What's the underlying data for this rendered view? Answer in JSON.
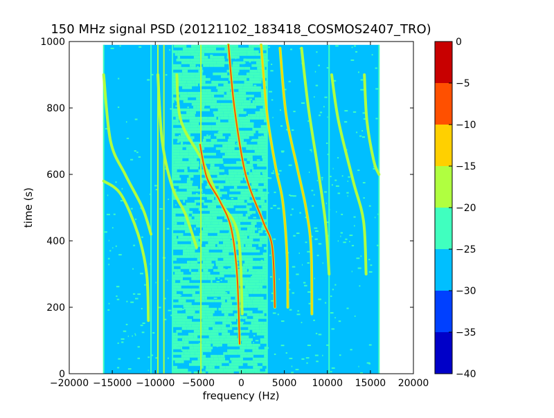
{
  "chart_data": {
    "type": "heatmap",
    "title": "150 MHz signal PSD (20121102_183418_COSMOS2407_TRO)",
    "xlabel": "frequency (Hz)",
    "ylabel": "time (s)",
    "xlim": [
      -20000,
      20000
    ],
    "ylim": [
      0,
      1000
    ],
    "x_ticks": [
      -20000,
      -15000,
      -10000,
      -5000,
      0,
      5000,
      10000,
      15000,
      20000
    ],
    "y_ticks": [
      0,
      200,
      400,
      600,
      800,
      1000
    ],
    "data_extent": {
      "freq_min_hz": -16000,
      "freq_max_hz": 16000,
      "time_min_s": 0,
      "time_max_s": 990
    },
    "grid": false,
    "colorbar": {
      "range": [
        -40,
        0
      ],
      "ticks": [
        0,
        -5,
        -10,
        -15,
        -20,
        -25,
        -30,
        -35,
        -40
      ],
      "levels": [
        {
          "from": -40,
          "to": -35,
          "color": "#0000c8"
        },
        {
          "from": -35,
          "to": -30,
          "color": "#0040ff"
        },
        {
          "from": -30,
          "to": -25,
          "color": "#00bfff"
        },
        {
          "from": -25,
          "to": -20,
          "color": "#40ffbf"
        },
        {
          "from": -20,
          "to": -15,
          "color": "#b0ff40"
        },
        {
          "from": -15,
          "to": -10,
          "color": "#ffd000"
        },
        {
          "from": -10,
          "to": -5,
          "color": "#ff5000"
        },
        {
          "from": -5,
          "to": 0,
          "color": "#c80000"
        }
      ]
    },
    "background_level_db": -27,
    "noise_region": {
      "freq_range_hz": [
        -8000,
        3000
      ],
      "level_db": -23
    },
    "vertical_lines": [
      {
        "freq_hz": -16000,
        "level_db": -22
      },
      {
        "freq_hz": -10500,
        "level_db": -22
      },
      {
        "freq_hz": -9700,
        "level_db": -19
      },
      {
        "freq_hz": -9000,
        "level_db": -17
      },
      {
        "freq_hz": -8000,
        "level_db": -21
      },
      {
        "freq_hz": -4700,
        "level_db": -16
      },
      {
        "freq_hz": 3000,
        "level_db": -22
      },
      {
        "freq_hz": 10200,
        "level_db": -22
      },
      {
        "freq_hz": 16000,
        "level_db": -22
      }
    ],
    "doppler_traces": [
      {
        "level_db": -20,
        "points": [
          [
            -16000,
            580
          ],
          [
            -14000,
            540
          ],
          [
            -12000,
            420
          ],
          [
            -11000,
            300
          ],
          [
            -10800,
            160
          ]
        ]
      },
      {
        "level_db": -20,
        "points": [
          [
            -16000,
            900
          ],
          [
            -15200,
            700
          ],
          [
            -13500,
            600
          ],
          [
            -11500,
            500
          ],
          [
            -10500,
            420
          ]
        ]
      },
      {
        "level_db": -18,
        "points": [
          [
            -9700,
            900
          ],
          [
            -9200,
            700
          ],
          [
            -8000,
            560
          ],
          [
            -6500,
            480
          ],
          [
            -5200,
            380
          ]
        ]
      },
      {
        "level_db": -16,
        "points": [
          [
            -7500,
            900
          ],
          [
            -7000,
            760
          ],
          [
            -4500,
            640
          ],
          [
            -2500,
            520
          ],
          [
            -400,
            420
          ],
          [
            100,
            180
          ]
        ]
      },
      {
        "level_db": -8,
        "points": [
          [
            -4800,
            690
          ],
          [
            -4000,
            590
          ],
          [
            -2500,
            520
          ],
          [
            -1200,
            440
          ],
          [
            -500,
            300
          ],
          [
            -200,
            90
          ]
        ]
      },
      {
        "level_db": -10,
        "points": [
          [
            -1500,
            990
          ],
          [
            -800,
            800
          ],
          [
            500,
            600
          ],
          [
            2500,
            460
          ],
          [
            3600,
            380
          ],
          [
            3900,
            200
          ]
        ]
      },
      {
        "level_db": -12,
        "points": [
          [
            2300,
            990
          ],
          [
            3000,
            780
          ],
          [
            4000,
            620
          ],
          [
            4800,
            520
          ],
          [
            5300,
            360
          ],
          [
            5400,
            200
          ]
        ]
      },
      {
        "level_db": -14,
        "points": [
          [
            4500,
            980
          ],
          [
            5200,
            780
          ],
          [
            6500,
            620
          ],
          [
            7500,
            500
          ],
          [
            8100,
            380
          ],
          [
            8200,
            180
          ]
        ]
      },
      {
        "level_db": -17,
        "points": [
          [
            7000,
            980
          ],
          [
            7800,
            800
          ],
          [
            9000,
            600
          ],
          [
            9800,
            450
          ],
          [
            10200,
            300
          ]
        ]
      },
      {
        "level_db": -19,
        "points": [
          [
            10500,
            900
          ],
          [
            11300,
            760
          ],
          [
            13000,
            580
          ],
          [
            14200,
            460
          ],
          [
            14500,
            300
          ]
        ]
      },
      {
        "level_db": -19,
        "points": [
          [
            14300,
            900
          ],
          [
            14600,
            760
          ],
          [
            15400,
            640
          ],
          [
            16000,
            600
          ]
        ]
      }
    ]
  }
}
